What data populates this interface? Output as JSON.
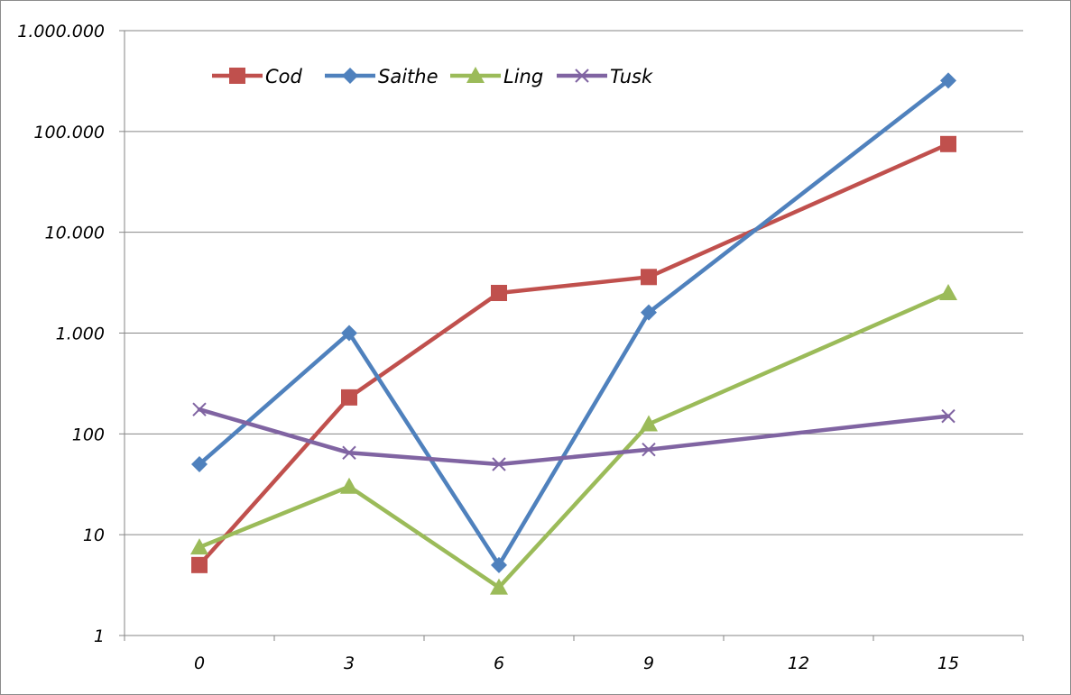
{
  "chart_data": {
    "type": "line",
    "title": "",
    "xlabel": "",
    "ylabel": "",
    "y_scale": "log",
    "ylim": [
      1,
      1000000
    ],
    "x_ticks": [
      "0",
      "3",
      "6",
      "9",
      "12",
      "15"
    ],
    "y_ticks": [
      "1",
      "10",
      "100",
      "1.000",
      "10.000",
      "100.000",
      "1.000.000"
    ],
    "grid": "horizontal",
    "legend_position": "top-left",
    "x": [
      0,
      3,
      6,
      9,
      15
    ],
    "series": [
      {
        "name": "Cod",
        "color": "#c0504d",
        "marker": "square",
        "values": [
          5,
          230,
          2500,
          3600,
          75000
        ]
      },
      {
        "name": "Saithe",
        "color": "#4f81bd",
        "marker": "diamond",
        "values": [
          50,
          1000,
          5,
          1600,
          320000
        ]
      },
      {
        "name": "Ling",
        "color": "#9bbb59",
        "marker": "triangle",
        "values": [
          7.5,
          30,
          3,
          125,
          2500
        ]
      },
      {
        "name": "Tusk",
        "color": "#8064a2",
        "marker": "x",
        "values": [
          175,
          65,
          50,
          70,
          150
        ]
      }
    ]
  }
}
